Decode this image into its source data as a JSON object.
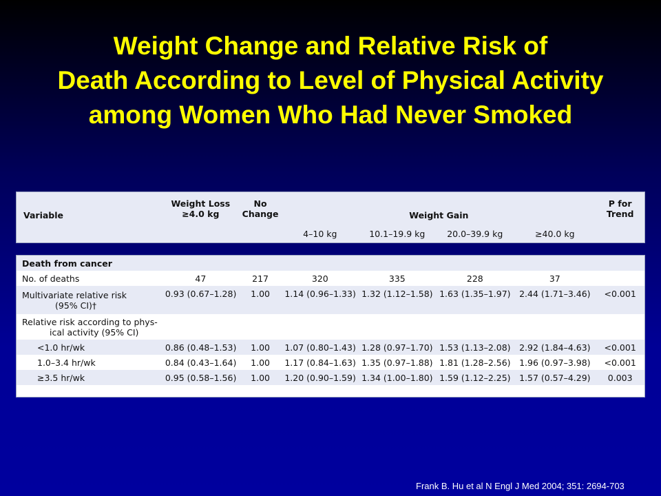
{
  "title": {
    "line1": "Weight Change and Relative Risk of",
    "line2": "Death According to Level of Physical Activity",
    "line3": "among Women Who Had Never Smoked"
  },
  "header": {
    "variable": "Variable",
    "weight_loss_1": "Weight Loss",
    "weight_loss_2": "≥4.0 kg",
    "no_change_1": "No",
    "no_change_2": "Change",
    "weight_gain": "Weight Gain",
    "p_trend_1": "P for",
    "p_trend_2": "Trend",
    "sub_1": "4–10 kg",
    "sub_2": "10.1–19.9 kg",
    "sub_3": "20.0–39.9 kg",
    "sub_4": "≥40.0 kg"
  },
  "section": "Death from cancer",
  "rows": {
    "deaths": {
      "label": "No. of deaths",
      "v": [
        "47",
        "217",
        "320",
        "335",
        "228",
        "37",
        ""
      ]
    },
    "multi": {
      "label1": "Multivariate relative risk",
      "label2": "(95% CI)†",
      "v": [
        "0.93 (0.67–1.28)",
        "1.00",
        "1.14 (0.96–1.33)",
        "1.32 (1.12–1.58)",
        "1.63 (1.35–1.97)",
        "2.44 (1.71–3.46)",
        "<0.001"
      ]
    },
    "rr_label1": "Relative risk according to phys-",
    "rr_label2": "ical activity (95% CI)",
    "lt1": {
      "label": "<1.0 hr/wk",
      "v": [
        "0.86 (0.48–1.53)",
        "1.00",
        "1.07 (0.80–1.43)",
        "1.28 (0.97–1.70)",
        "1.53 (1.13–2.08)",
        "2.92 (1.84–4.63)",
        "<0.001"
      ]
    },
    "mid": {
      "label": "1.0–3.4 hr/wk",
      "v": [
        "0.84 (0.43–1.64)",
        "1.00",
        "1.17 (0.84–1.63)",
        "1.35 (0.97–1.88)",
        "1.81 (1.28–2.56)",
        "1.96 (0.97–3.98)",
        "<0.001"
      ]
    },
    "ge35": {
      "label": "≥3.5 hr/wk",
      "v": [
        "0.95 (0.58–1.56)",
        "1.00",
        "1.20 (0.90–1.59)",
        "1.34 (1.00–1.80)",
        "1.59 (1.12–2.25)",
        "1.57 (0.57–4.29)",
        "0.003"
      ]
    }
  },
  "citation": "Frank B. Hu et al N Engl J Med 2004; 351: 2694-703"
}
